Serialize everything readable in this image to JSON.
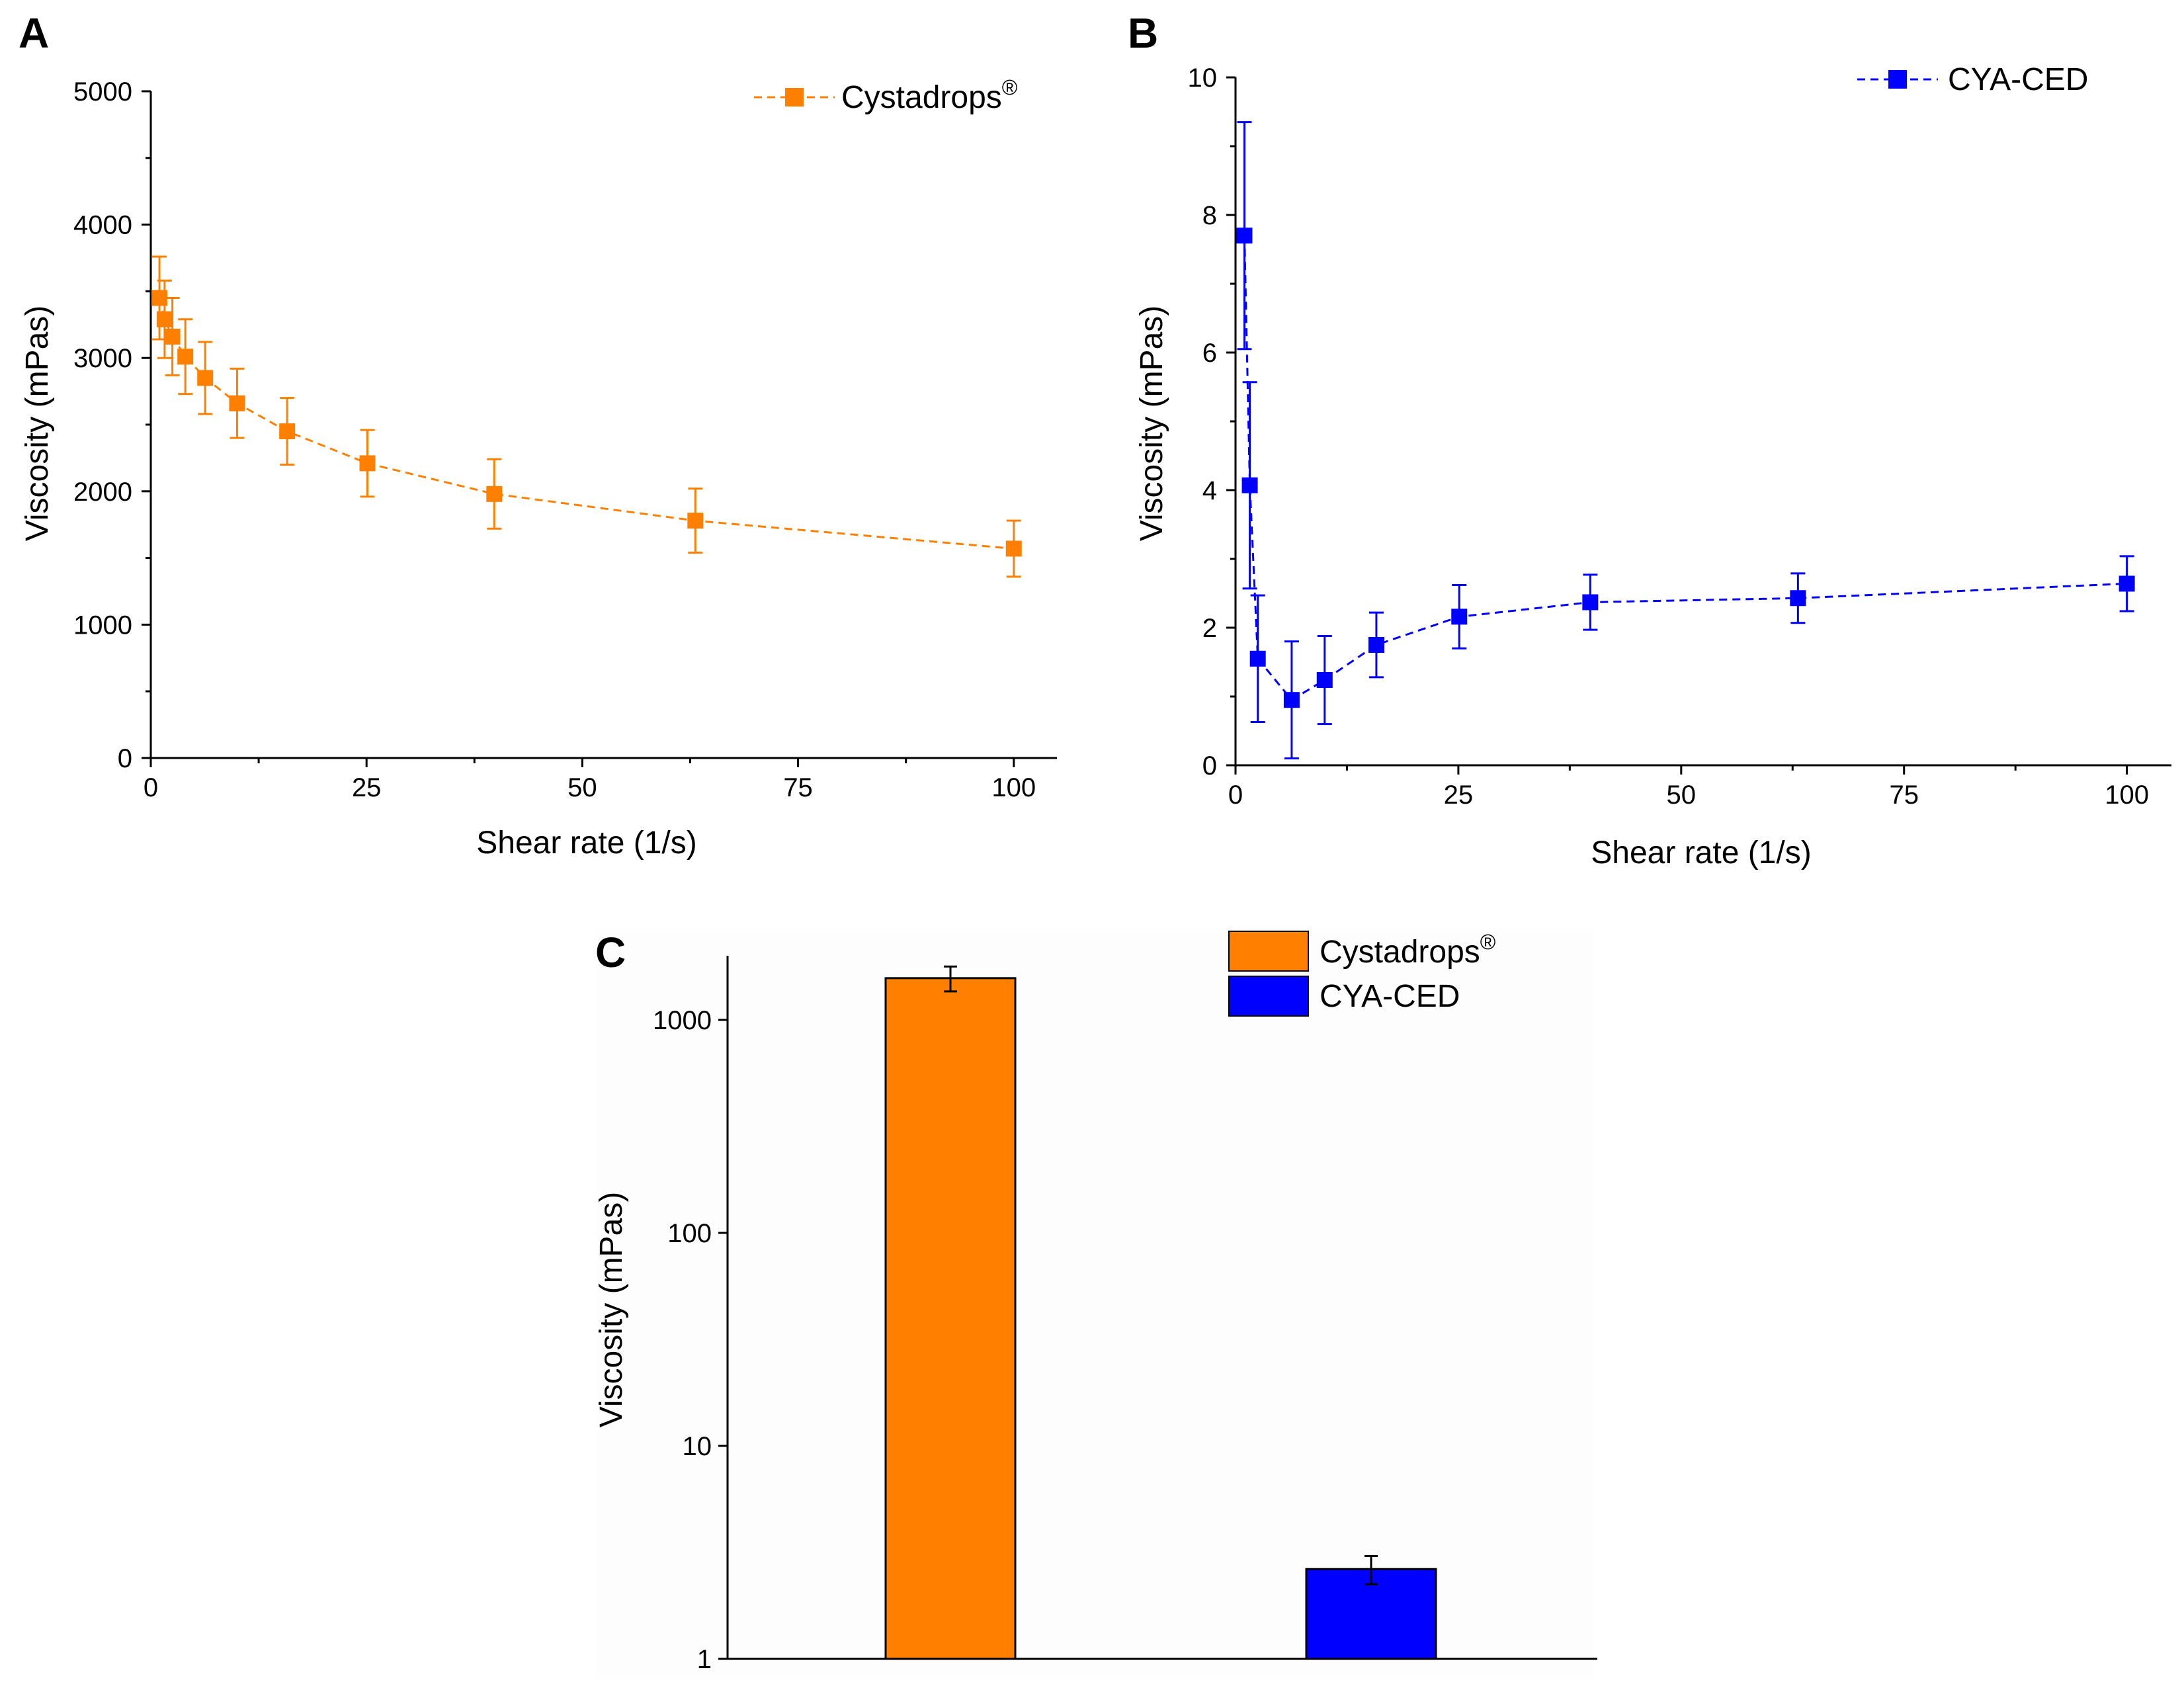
{
  "chart_data": [
    {
      "panel": "A",
      "type": "line",
      "xlabel": "Shear rate (1/s)",
      "ylabel": "Viscosity (mPas)",
      "xlim": [
        0,
        105
      ],
      "ylim": [
        0,
        5000
      ],
      "xticks": [
        "0",
        "25",
        "50",
        "75",
        "100"
      ],
      "yticks": [
        "0",
        "1000",
        "2000",
        "3000",
        "4000",
        "5000"
      ],
      "color": "#ff8000",
      "legend": {
        "label": "Cystadrops",
        "superscript": "®",
        "position": "top-right"
      },
      "series": [
        {
          "name": "Cystadrops®",
          "x": [
            1,
            1.6,
            2.5,
            4,
            6.3,
            10,
            15.8,
            25.1,
            39.8,
            63.1,
            100
          ],
          "y": [
            3450,
            3290,
            3160,
            3010,
            2850,
            2660,
            2450,
            2210,
            1980,
            1780,
            1570
          ],
          "err": [
            310,
            290,
            290,
            280,
            270,
            260,
            250,
            250,
            260,
            240,
            210
          ]
        }
      ]
    },
    {
      "panel": "B",
      "type": "line",
      "xlabel": "Shear rate (1/s)",
      "ylabel": "Viscosity (mPas)",
      "xlim": [
        0,
        105
      ],
      "ylim": [
        0,
        10
      ],
      "xticks": [
        "0",
        "25",
        "50",
        "75",
        "100"
      ],
      "yticks": [
        "0",
        "2",
        "4",
        "6",
        "8",
        "10"
      ],
      "color": "#0000ff",
      "legend": {
        "label": "CYA-CED",
        "superscript": "",
        "position": "top-right"
      },
      "series": [
        {
          "name": "CYA-CED",
          "x": [
            1,
            1.6,
            2.5,
            6.3,
            10,
            15.8,
            25.1,
            39.8,
            63.1,
            100
          ],
          "y": [
            7.7,
            4.07,
            1.55,
            0.95,
            1.24,
            1.75,
            2.16,
            2.37,
            2.43,
            2.64
          ],
          "err": [
            1.65,
            1.5,
            0.92,
            0.85,
            0.64,
            0.47,
            0.46,
            0.4,
            0.36,
            0.4
          ]
        }
      ]
    },
    {
      "panel": "C",
      "type": "bar",
      "ylabel": "Viscosity (mPas)",
      "yscale": "log",
      "ylim": [
        1,
        2000
      ],
      "yticks": [
        "1",
        "10",
        "100",
        "1000"
      ],
      "categories": [
        "Cystadrops®",
        "CYA-CED"
      ],
      "values": [
        1570,
        2.64
      ],
      "err": [
        210,
        0.4
      ],
      "colors": [
        "#ff8000",
        "#0000ff"
      ],
      "legend": [
        {
          "label": "Cystadrops",
          "superscript": "®",
          "color": "#ff8000"
        },
        {
          "label": "CYA-CED",
          "superscript": "",
          "color": "#0000ff"
        }
      ]
    }
  ]
}
